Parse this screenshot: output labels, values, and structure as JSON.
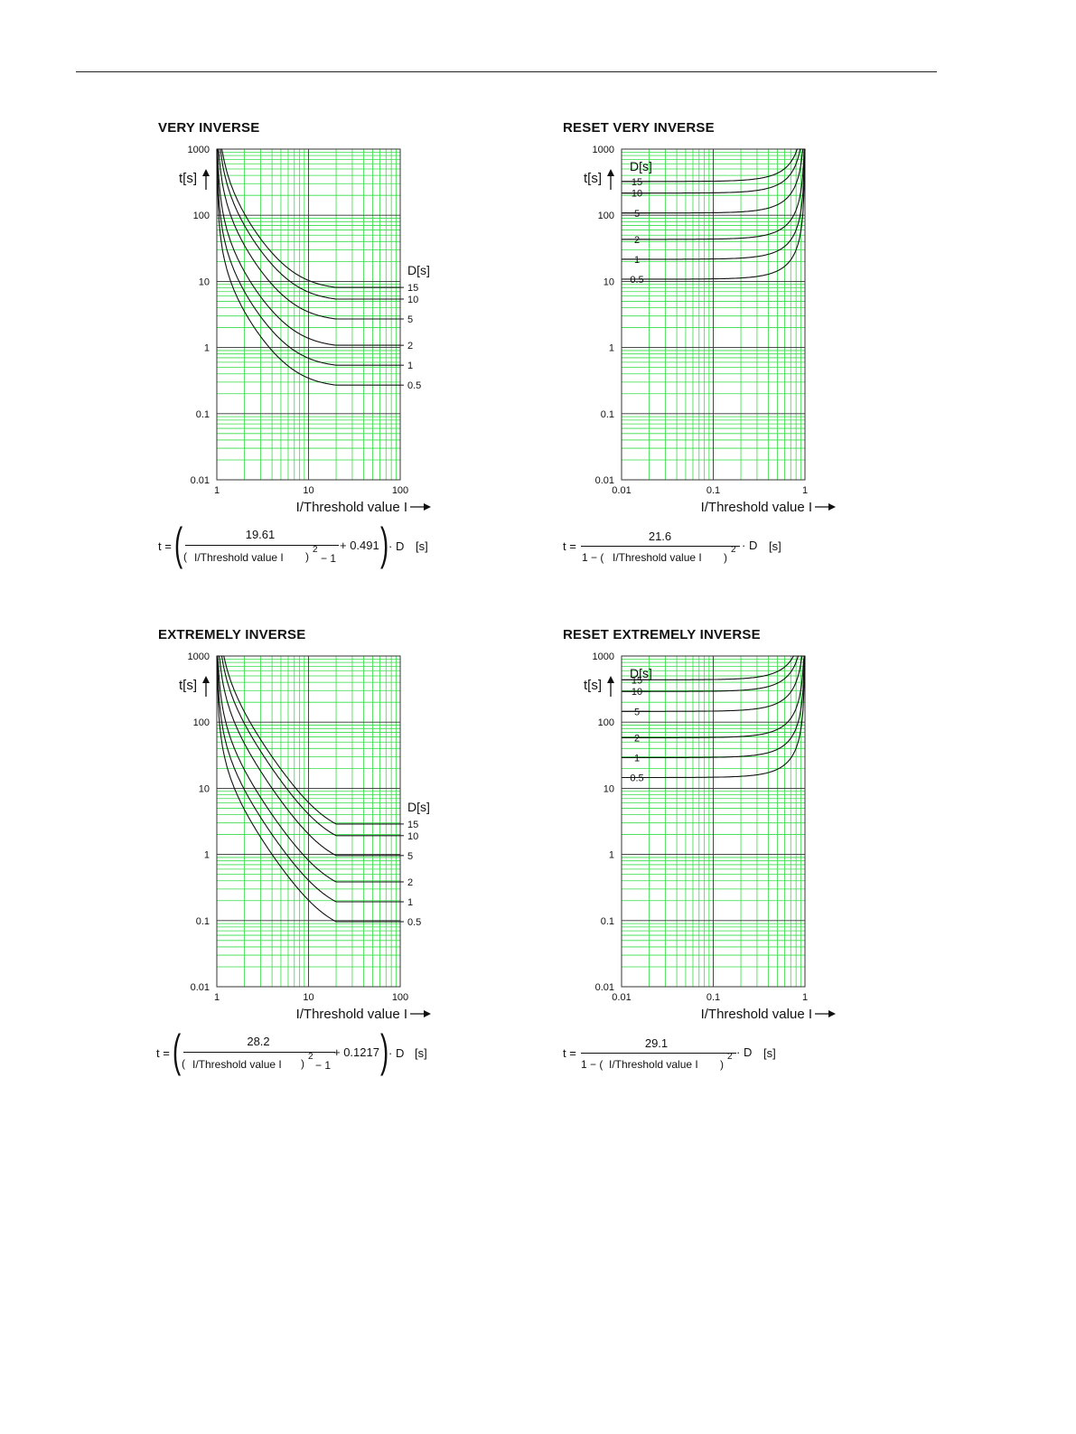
{
  "colors": {
    "grid_minor": "#33dd44",
    "grid_major": "#333333",
    "curve": "#111111"
  },
  "charts": [
    {
      "title": "VERY INVERSE",
      "ylabel": "t[s]",
      "xlabel": "I/Threshold value I",
      "dlabel": "D[s]",
      "formula": {
        "prefix": "t =",
        "numerator": "19.61",
        "denominator": "I/Threshold value I",
        "exponent": "2",
        "minus": "− 1",
        "constant": "+ 0.491",
        "tail": "· D",
        "units": "[s]"
      }
    },
    {
      "title": "RESET VERY INVERSE",
      "ylabel": "t[s]",
      "xlabel": "I/Threshold value I",
      "dlabel": "D[s]",
      "formula": {
        "prefix": "t =",
        "numerator": "21.6",
        "denominator": "I/Threshold value I",
        "exponent": "2",
        "one_minus": "1 − (",
        "tail": "· D",
        "units": "[s]"
      }
    },
    {
      "title": "EXTREMELY INVERSE",
      "ylabel": "t[s]",
      "xlabel": "I/Threshold value I",
      "dlabel": "D[s]",
      "formula": {
        "prefix": "t =",
        "numerator": "28.2",
        "denominator": "I/Threshold value I",
        "exponent": "2",
        "minus": "− 1",
        "constant": "+ 0.1217",
        "tail": "· D",
        "units": "[s]"
      }
    },
    {
      "title": "RESET EXTREMELY INVERSE",
      "ylabel": "t[s]",
      "xlabel": "I/Threshold value I",
      "dlabel": "D[s]",
      "formula": {
        "prefix": "t =",
        "numerator": "29.1",
        "denominator": "I/Threshold value I",
        "exponent": "2",
        "one_minus": "1 − (",
        "tail": "· D",
        "units": "[s]"
      }
    }
  ],
  "chart_data": [
    {
      "type": "line",
      "title": "VERY INVERSE",
      "xlabel": "I/Threshold value I",
      "ylabel": "t[s]",
      "xscale": "log",
      "yscale": "log",
      "xlim": [
        1,
        100
      ],
      "ylim": [
        0.01,
        1000
      ],
      "x_ticks": [
        "1",
        "10",
        "100"
      ],
      "y_ticks": [
        "0.01",
        "0.1",
        "1",
        "10",
        "100",
        "1000"
      ],
      "model": {
        "k": 19.61,
        "c": 0.491,
        "exp": 2,
        "flat_from_x": 20
      },
      "series": [
        {
          "name": "15",
          "D": 15
        },
        {
          "name": "10",
          "D": 10
        },
        {
          "name": "5",
          "D": 5
        },
        {
          "name": "2",
          "D": 2
        },
        {
          "name": "1",
          "D": 1
        },
        {
          "name": "0.5",
          "D": 0.5
        }
      ],
      "legend_title": "D[s]",
      "legend": "right"
    },
    {
      "type": "line",
      "title": "RESET VERY INVERSE",
      "xlabel": "I/Threshold value I",
      "ylabel": "t[s]",
      "xscale": "log",
      "yscale": "log",
      "xlim": [
        0.01,
        1
      ],
      "ylim": [
        0.01,
        1000
      ],
      "x_ticks": [
        "0.01",
        "0.1",
        "1"
      ],
      "y_ticks": [
        "0.01",
        "0.1",
        "1",
        "10",
        "100",
        "1000"
      ],
      "model": {
        "k": 21.6,
        "exp": 2,
        "reset": true
      },
      "series": [
        {
          "name": "15",
          "D": 15
        },
        {
          "name": "10",
          "D": 10
        },
        {
          "name": "5",
          "D": 5
        },
        {
          "name": "2",
          "D": 2
        },
        {
          "name": "1",
          "D": 1
        },
        {
          "name": "0.5",
          "D": 0.5
        }
      ],
      "legend_title": "D[s]",
      "legend": "top-left"
    },
    {
      "type": "line",
      "title": "EXTREMELY INVERSE",
      "xlabel": "I/Threshold value I",
      "ylabel": "t[s]",
      "xscale": "log",
      "yscale": "log",
      "xlim": [
        1,
        100
      ],
      "ylim": [
        0.01,
        1000
      ],
      "x_ticks": [
        "1",
        "10",
        "100"
      ],
      "y_ticks": [
        "0.01",
        "0.1",
        "1",
        "10",
        "100",
        "1000"
      ],
      "model": {
        "k": 28.2,
        "c": 0.1217,
        "exp": 2,
        "flat_from_x": 20
      },
      "series": [
        {
          "name": "15",
          "D": 15
        },
        {
          "name": "10",
          "D": 10
        },
        {
          "name": "5",
          "D": 5
        },
        {
          "name": "2",
          "D": 2
        },
        {
          "name": "1",
          "D": 1
        },
        {
          "name": "0.5",
          "D": 0.5
        }
      ],
      "legend_title": "D[s]",
      "legend": "right"
    },
    {
      "type": "line",
      "title": "RESET EXTREMELY INVERSE",
      "xlabel": "I/Threshold value I",
      "ylabel": "t[s]",
      "xscale": "log",
      "yscale": "log",
      "xlim": [
        0.01,
        1
      ],
      "ylim": [
        0.01,
        1000
      ],
      "x_ticks": [
        "0.01",
        "0.1",
        "1"
      ],
      "y_ticks": [
        "0.01",
        "0.1",
        "1",
        "10",
        "100",
        "1000"
      ],
      "model": {
        "k": 29.1,
        "exp": 2,
        "reset": true
      },
      "series": [
        {
          "name": "15",
          "D": 15
        },
        {
          "name": "10",
          "D": 10
        },
        {
          "name": "5",
          "D": 5
        },
        {
          "name": "2",
          "D": 2
        },
        {
          "name": "1",
          "D": 1
        },
        {
          "name": "0.5",
          "D": 0.5
        }
      ],
      "legend_title": "D[s]",
      "legend": "top-left"
    }
  ]
}
